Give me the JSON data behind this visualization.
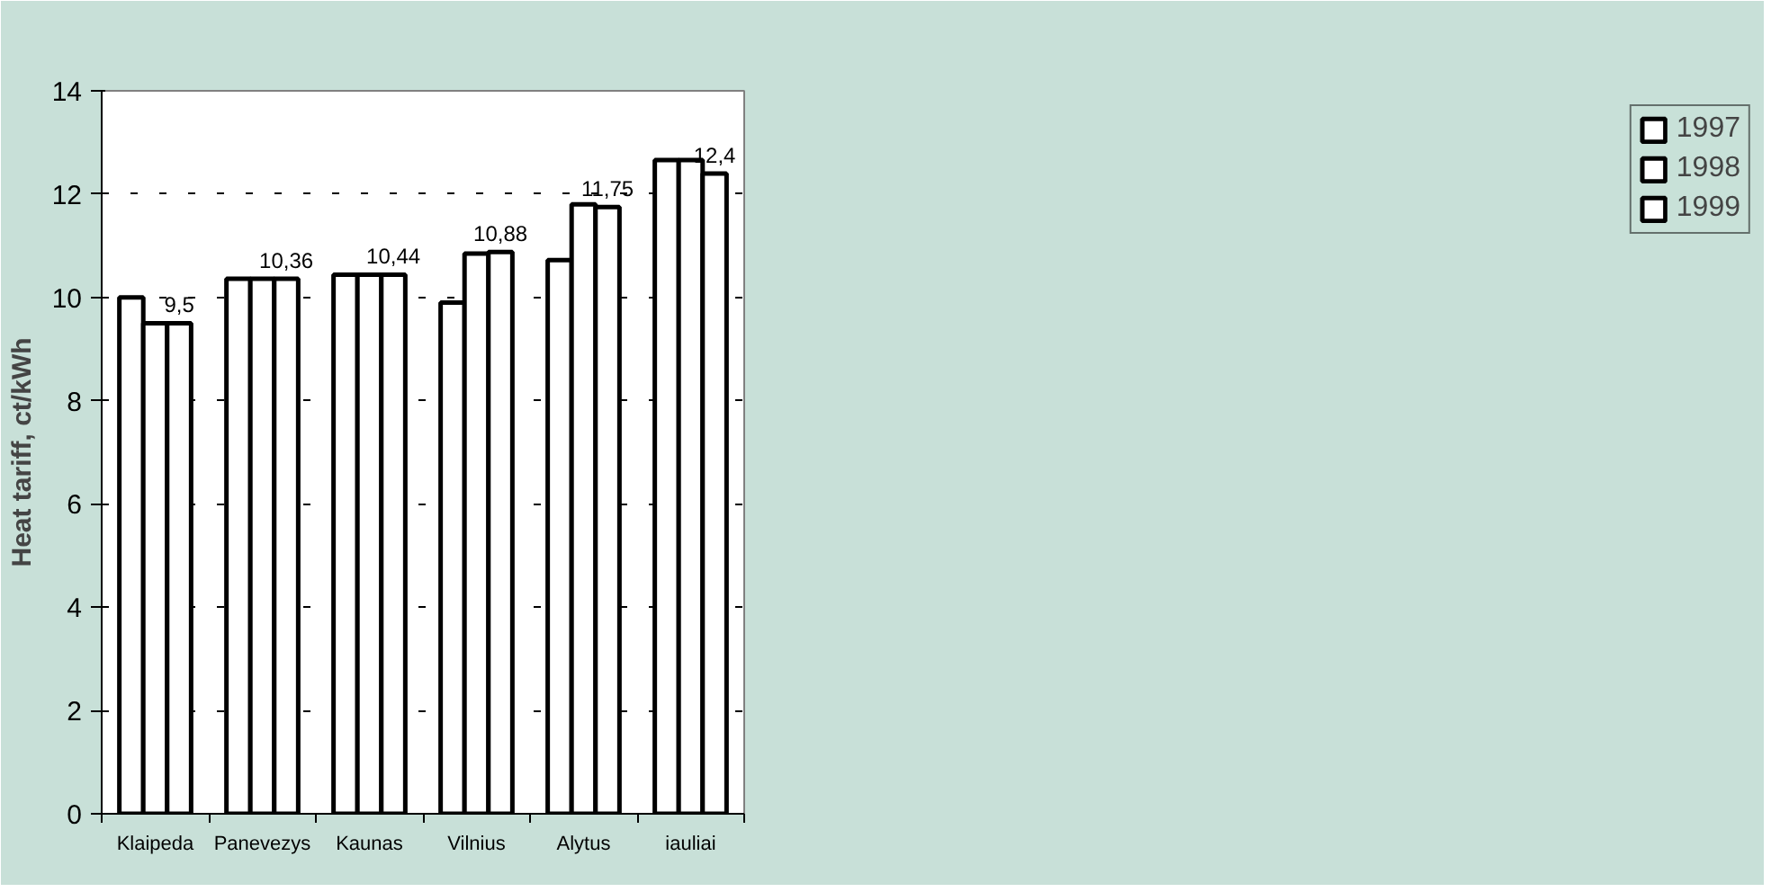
{
  "chart_data": {
    "type": "bar",
    "ylabel": "Heat tariff, ct/kWh",
    "categories": [
      "Klaipeda",
      "Panevezys",
      "Kaunas",
      "Vilnius",
      "Alytus",
      "iauliai"
    ],
    "series": [
      {
        "name": "1997",
        "color": "#ffffff",
        "values": [
          10.0,
          10.36,
          10.44,
          9.9,
          10.72,
          12.66
        ]
      },
      {
        "name": "1998",
        "color": "#ffffff",
        "values": [
          9.5,
          10.36,
          10.44,
          10.85,
          11.8,
          12.66
        ]
      },
      {
        "name": "1999",
        "color": "#ffffff",
        "values": [
          9.5,
          10.36,
          10.44,
          10.88,
          11.75,
          12.4
        ],
        "value_labels": [
          "9,5",
          "10,36",
          "10,44",
          "10,88",
          "11,75",
          "12,4"
        ]
      }
    ],
    "ylim": [
      0,
      14
    ],
    "yticks": [
      0,
      2,
      4,
      6,
      8,
      10,
      12,
      14
    ],
    "grid": "y",
    "legend": "right"
  }
}
